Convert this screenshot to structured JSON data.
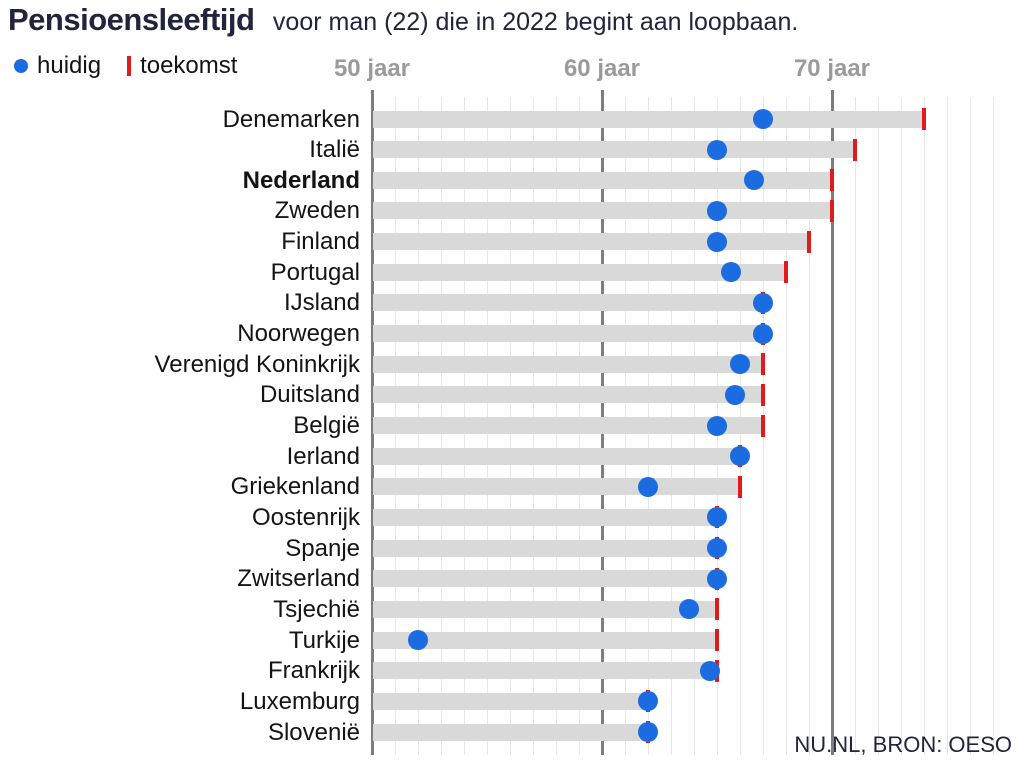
{
  "header": {
    "title": "Pensioensleeftijd",
    "subtitle": "voor man (22) die in 2022 begint aan loopbaan."
  },
  "source": "NU.NL, BRON: OESO",
  "colors": {
    "accent_blue": "#1b6ce0",
    "accent_red": "#e01b1b",
    "bar_gray": "#d9d9d9",
    "axis_label_gray": "#9a9a9a",
    "grid_minor": "#e7e7e7",
    "grid_major": "#7d7d7d",
    "text_navy": "#20243d"
  },
  "chart_data": {
    "type": "dot-bar",
    "title": "Pensioensleeftijd",
    "subtitle": "voor man (22) die in 2022 begint aan loopbaan.",
    "unit": "jaar",
    "legend": [
      {
        "label": "huidig",
        "marker": "dot",
        "color": "#1b6ce0"
      },
      {
        "label": "toekomst",
        "marker": "tick",
        "color": "#e01b1b"
      }
    ],
    "x_axis": {
      "min": 50,
      "max": 77,
      "minor_step": 1,
      "ticks": [
        50,
        60,
        70
      ],
      "tick_labels": [
        "50 jaar",
        "60 jaar",
        "70 jaar"
      ]
    },
    "grid": true,
    "legend_position": "top-left",
    "rows": [
      {
        "country": "Denemarken",
        "huidig": 67,
        "toekomst": 74
      },
      {
        "country": "Italië",
        "huidig": 65,
        "toekomst": 71
      },
      {
        "country": "Nederland",
        "huidig": 66.6,
        "toekomst": 70,
        "emphasis": true
      },
      {
        "country": "Zweden",
        "huidig": 65,
        "toekomst": 70
      },
      {
        "country": "Finland",
        "huidig": 65,
        "toekomst": 69
      },
      {
        "country": "Portugal",
        "huidig": 65.6,
        "toekomst": 68
      },
      {
        "country": "IJsland",
        "huidig": 67,
        "toekomst": 67
      },
      {
        "country": "Noorwegen",
        "huidig": 67,
        "toekomst": 67
      },
      {
        "country": "Verenigd Koninkrijk",
        "huidig": 66,
        "toekomst": 67
      },
      {
        "country": "Duitsland",
        "huidig": 65.8,
        "toekomst": 67
      },
      {
        "country": "België",
        "huidig": 65,
        "toekomst": 67
      },
      {
        "country": "Ierland",
        "huidig": 66,
        "toekomst": 66
      },
      {
        "country": "Griekenland",
        "huidig": 62,
        "toekomst": 66
      },
      {
        "country": "Oostenrijk",
        "huidig": 65,
        "toekomst": 65
      },
      {
        "country": "Spanje",
        "huidig": 65,
        "toekomst": 65
      },
      {
        "country": "Zwitserland",
        "huidig": 65,
        "toekomst": 65
      },
      {
        "country": "Tsjechië",
        "huidig": 63.8,
        "toekomst": 65
      },
      {
        "country": "Turkije",
        "huidig": 52,
        "toekomst": 65
      },
      {
        "country": "Frankrijk",
        "huidig": 64.7,
        "toekomst": 65
      },
      {
        "country": "Luxemburg",
        "huidig": 62,
        "toekomst": 62
      },
      {
        "country": "Slovenië",
        "huidig": 62,
        "toekomst": 62
      }
    ],
    "source": "NU.NL, BRON: OESO"
  }
}
